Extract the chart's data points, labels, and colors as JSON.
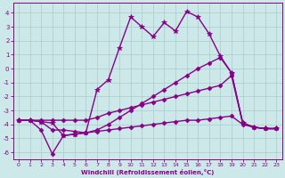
{
  "xlabel": "Windchill (Refroidissement éolien,°C)",
  "background_color": "#cce8e8",
  "grid_color": "#aacccc",
  "line_color": "#880088",
  "xlim": [
    -0.5,
    23.5
  ],
  "ylim": [
    -6.5,
    4.7
  ],
  "yticks": [
    -6,
    -5,
    -4,
    -3,
    -2,
    -1,
    0,
    1,
    2,
    3,
    4
  ],
  "xticks": [
    0,
    1,
    2,
    3,
    4,
    5,
    6,
    7,
    8,
    9,
    10,
    11,
    12,
    13,
    14,
    15,
    16,
    17,
    18,
    19,
    20,
    21,
    22,
    23
  ],
  "series": [
    {
      "x": [
        0,
        1,
        2,
        3,
        4,
        5,
        6,
        7,
        8,
        9,
        10,
        11,
        12,
        13,
        14,
        15,
        16,
        17,
        18,
        19,
        20,
        21,
        22,
        23
      ],
      "y": [
        -3.7,
        -3.7,
        -3.8,
        -3.9,
        -4.8,
        -4.7,
        -4.6,
        -1.5,
        -0.8,
        1.5,
        3.7,
        3.0,
        2.3,
        3.3,
        2.7,
        4.1,
        3.7,
        2.5,
        0.9,
        -0.3,
        -3.9,
        -4.2,
        -4.3,
        -4.3
      ],
      "marker": "*",
      "markersize": 4,
      "linewidth": 1.0
    },
    {
      "x": [
        0,
        1,
        2,
        3,
        4,
        5,
        6,
        7,
        8,
        9,
        10,
        11,
        12,
        13,
        14,
        15,
        16,
        17,
        18,
        19,
        20,
        21,
        22,
        23
      ],
      "y": [
        -3.7,
        -3.7,
        -3.8,
        -4.4,
        -4.4,
        -4.5,
        -4.6,
        -4.4,
        -4.0,
        -3.5,
        -3.0,
        -2.5,
        -2.0,
        -1.5,
        -1.0,
        -0.5,
        0.0,
        0.4,
        0.8,
        -0.3,
        -3.9,
        -4.2,
        -4.3,
        -4.3
      ],
      "marker": "D",
      "markersize": 2.5,
      "linewidth": 1.0
    },
    {
      "x": [
        0,
        1,
        2,
        3,
        4,
        5,
        6,
        7,
        8,
        9,
        10,
        11,
        12,
        13,
        14,
        15,
        16,
        17,
        18,
        19,
        20,
        21,
        22,
        23
      ],
      "y": [
        -3.7,
        -3.7,
        -3.7,
        -3.7,
        -3.7,
        -3.7,
        -3.7,
        -3.5,
        -3.2,
        -3.0,
        -2.8,
        -2.6,
        -2.4,
        -2.2,
        -2.0,
        -1.8,
        -1.6,
        -1.4,
        -1.2,
        -0.5,
        -3.9,
        -4.2,
        -4.3,
        -4.3
      ],
      "marker": "D",
      "markersize": 2.5,
      "linewidth": 1.0
    },
    {
      "x": [
        0,
        1,
        2,
        3,
        4,
        5,
        6,
        7,
        8,
        9,
        10,
        11,
        12,
        13,
        14,
        15,
        16,
        17,
        18,
        19,
        20,
        21,
        22,
        23
      ],
      "y": [
        -3.7,
        -3.7,
        -4.4,
        -6.1,
        -4.8,
        -4.7,
        -4.6,
        -4.5,
        -4.4,
        -4.3,
        -4.2,
        -4.1,
        -4.0,
        -3.9,
        -3.8,
        -3.7,
        -3.7,
        -3.6,
        -3.5,
        -3.4,
        -4.0,
        -4.2,
        -4.3,
        -4.3
      ],
      "marker": "D",
      "markersize": 2.5,
      "linewidth": 1.0
    }
  ]
}
